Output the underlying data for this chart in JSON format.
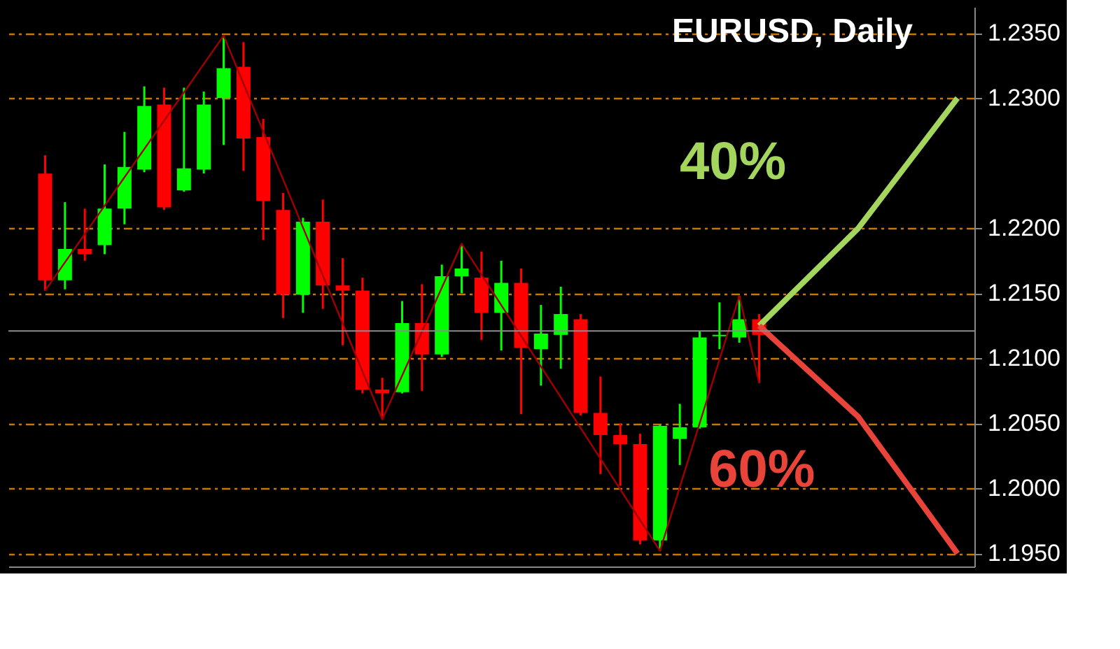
{
  "chart_data": {
    "type": "candlestick",
    "title": "EURUSD, Daily",
    "categories": [
      null,
      null,
      null,
      null,
      null,
      null,
      null,
      null,
      null,
      null,
      null,
      null,
      null,
      null,
      null,
      null,
      null,
      null,
      null,
      null,
      null,
      null,
      null,
      null,
      null,
      null,
      null,
      null,
      null,
      null,
      null,
      null,
      null,
      null,
      null,
      null,
      null,
      null,
      null,
      null,
      null,
      null,
      null,
      null,
      null,
      null,
      null
    ],
    "ohlc": [
      [
        1.2242,
        1.2256,
        1.2152,
        1.216
      ],
      [
        1.216,
        1.222,
        1.2153,
        1.2184
      ],
      [
        1.2184,
        1.2215,
        1.2175,
        1.218
      ],
      [
        1.2187,
        1.2249,
        1.218,
        1.2215
      ],
      [
        1.2215,
        1.2274,
        1.2203,
        1.2247
      ],
      [
        1.2245,
        1.2309,
        1.2243,
        1.2294
      ],
      [
        1.2295,
        1.2308,
        1.2214,
        1.2216
      ],
      [
        1.2229,
        1.2308,
        1.2228,
        1.2246
      ],
      [
        1.2245,
        1.2305,
        1.2242,
        1.2295
      ],
      [
        1.23,
        1.2348,
        1.2264,
        1.2323
      ],
      [
        1.2324,
        1.2343,
        1.2244,
        1.2269
      ],
      [
        1.227,
        1.2284,
        1.2191,
        1.2221
      ],
      [
        1.2214,
        1.2227,
        1.2131,
        1.2149
      ],
      [
        1.2149,
        1.2208,
        1.2135,
        1.2205
      ],
      [
        1.2205,
        1.2222,
        1.2138,
        1.2156
      ],
      [
        1.2156,
        1.2177,
        1.211,
        1.2152
      ],
      [
        1.2152,
        1.2162,
        1.2073,
        1.2076
      ],
      [
        1.2076,
        1.2085,
        1.2053,
        1.2073
      ],
      [
        1.2074,
        1.2144,
        1.2073,
        1.2127
      ],
      [
        1.2127,
        1.2157,
        1.2075,
        1.2103
      ],
      [
        1.2103,
        1.2172,
        1.2101,
        1.2163
      ],
      [
        1.2163,
        1.2188,
        1.215,
        1.2169
      ],
      [
        1.2162,
        1.2182,
        1.2114,
        1.2135
      ],
      [
        1.2135,
        1.2175,
        1.2106,
        1.2158
      ],
      [
        1.2158,
        1.2169,
        1.2057,
        1.2108
      ],
      [
        1.2107,
        1.2141,
        1.2079,
        1.2119
      ],
      [
        1.2118,
        1.2155,
        1.2092,
        1.2134
      ],
      [
        1.213,
        1.2134,
        1.2056,
        1.2058
      ],
      [
        1.2058,
        1.2086,
        1.2011,
        1.2041
      ],
      [
        1.2041,
        1.205,
        1.2002,
        1.2034
      ],
      [
        1.2034,
        1.2042,
        1.1957,
        1.196
      ],
      [
        1.196,
        1.2049,
        1.1952,
        1.2048
      ],
      [
        1.2038,
        1.2065,
        1.2018,
        1.2047
      ],
      [
        1.2047,
        1.2121,
        1.2046,
        1.2116
      ],
      [
        1.2117,
        1.2143,
        1.2107,
        1.2118
      ],
      [
        1.2116,
        1.2148,
        1.2112,
        1.213
      ],
      [
        1.213,
        1.2134,
        1.2081,
        1.2118
      ],
      null,
      null,
      null,
      null,
      null,
      null,
      null,
      null,
      null,
      null
    ],
    "colors": [
      "#ff0000",
      "#00ff00",
      "#ff0000",
      "#00ff00",
      "#00ff00",
      "#00ff00",
      "#ff0000",
      "#00ff00",
      "#00ff00",
      "#00ff00",
      "#ff0000",
      "#ff0000",
      "#ff0000",
      "#00ff00",
      "#ff0000",
      "#ff0000",
      "#ff0000",
      "#ff0000",
      "#00ff00",
      "#ff0000",
      "#00ff00",
      "#00ff00",
      "#ff0000",
      "#00ff00",
      "#ff0000",
      "#00ff00",
      "#00ff00",
      "#ff0000",
      "#ff0000",
      "#ff0000",
      "#ff0000",
      "#00ff00",
      "#00ff00",
      "#00ff00",
      "#00ff00",
      "#00ff00",
      "#ff0000",
      null,
      null,
      null,
      null,
      null,
      null,
      null,
      null,
      null,
      null
    ],
    "series": [
      {
        "type": "line",
        "color": "#a00000",
        "values": [
          1.2152,
          null,
          null,
          null,
          null,
          null,
          null,
          null,
          null,
          1.2348,
          null,
          null,
          null,
          null,
          null,
          null,
          null,
          1.2053,
          null,
          null,
          null,
          1.2188,
          null,
          null,
          null,
          null,
          null,
          null,
          null,
          null,
          null,
          1.1952,
          null,
          null,
          null,
          1.2148,
          1.2081,
          null,
          null,
          null,
          null,
          null,
          null,
          null,
          null,
          null,
          null
        ]
      },
      {
        "type": "line",
        "color": "#a4d65e",
        "values": [
          null,
          null,
          null,
          null,
          null,
          null,
          null,
          null,
          null,
          null,
          null,
          null,
          null,
          null,
          null,
          null,
          null,
          null,
          null,
          null,
          null,
          null,
          null,
          null,
          null,
          null,
          null,
          null,
          null,
          null,
          null,
          null,
          null,
          null,
          null,
          null,
          1.2125,
          null,
          null,
          null,
          null,
          1.22,
          null,
          null,
          null,
          null,
          1.23
        ]
      },
      {
        "type": "line",
        "color": "#e8443a",
        "values": [
          null,
          null,
          null,
          null,
          null,
          null,
          null,
          null,
          null,
          null,
          null,
          null,
          null,
          null,
          null,
          null,
          null,
          null,
          null,
          null,
          null,
          null,
          null,
          null,
          null,
          null,
          null,
          null,
          null,
          null,
          null,
          null,
          null,
          null,
          null,
          null,
          1.2125,
          null,
          null,
          null,
          null,
          1.2055,
          null,
          null,
          null,
          null,
          1.195
        ]
      }
    ],
    "ylim": [
      1.194,
      1.237
    ],
    "yticks": [
      {
        "value": 1.195,
        "label": "1.1950"
      },
      {
        "value": 1.2,
        "label": "1.2000"
      },
      {
        "value": 1.205,
        "label": "1.2050"
      },
      {
        "value": 1.21,
        "label": "1.2100"
      },
      {
        "value": 1.215,
        "label": "1.2150"
      },
      {
        "value": 1.22,
        "label": "1.2200"
      },
      {
        "value": 1.23,
        "label": "1.2300"
      },
      {
        "value": 1.235,
        "label": "1.2350"
      }
    ],
    "grid": "y",
    "tick_labels": "y",
    "ref_lines": [
      {
        "axis": "y",
        "value": 1.2121,
        "color": "#8c8c8c"
      }
    ],
    "annotations": [
      "40%",
      "60%"
    ]
  }
}
